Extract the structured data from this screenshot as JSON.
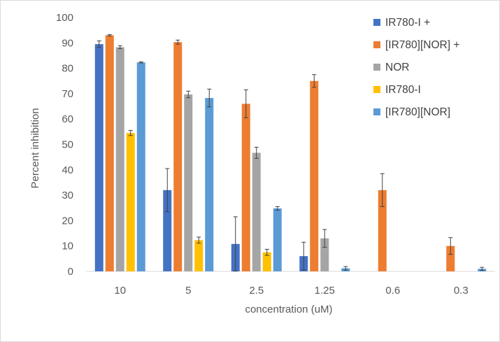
{
  "chart_data": {
    "type": "bar",
    "title": "",
    "xlabel": "concentration (uM)",
    "ylabel": "Percent inhibition",
    "ylim": [
      0,
      100
    ],
    "yticks": [
      0,
      10,
      20,
      30,
      40,
      50,
      60,
      70,
      80,
      90,
      100
    ],
    "grid": false,
    "legend_position": "right",
    "categories": [
      "10",
      "5",
      "2.5",
      "1.25",
      "0.6",
      "0.3"
    ],
    "series": [
      {
        "name": "IR780-I +",
        "color": "#4472c4",
        "values": [
          89.5,
          32,
          10.8,
          6,
          null,
          null
        ],
        "errors": [
          1.3,
          8.5,
          10.7,
          5.5,
          null,
          null
        ]
      },
      {
        "name": "[IR780][NOR] +",
        "color": "#ed7d31",
        "values": [
          93,
          90.3,
          66,
          75,
          32,
          10
        ],
        "errors": [
          0.3,
          0.8,
          5.5,
          2.5,
          6.5,
          3.3
        ]
      },
      {
        "name": "NOR",
        "color": "#a5a5a5",
        "values": [
          88.3,
          69.7,
          46.7,
          13,
          null,
          null
        ],
        "errors": [
          0.6,
          1.3,
          2.2,
          3.5,
          null,
          null
        ]
      },
      {
        "name": "IR780-I",
        "color": "#ffc000",
        "values": [
          54.5,
          12.3,
          7.5,
          null,
          null,
          null
        ],
        "errors": [
          1.0,
          1.2,
          1.2,
          null,
          null,
          null
        ]
      },
      {
        "name": "[IR780][NOR]",
        "color": "#5b9bd5",
        "values": [
          82.3,
          68.3,
          24.8,
          1.2,
          null,
          1.0
        ],
        "errors": [
          0.2,
          3.5,
          0.7,
          0.7,
          null,
          0.6
        ]
      }
    ]
  }
}
